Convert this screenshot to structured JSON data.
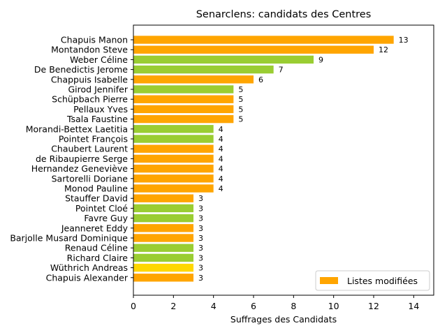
{
  "chart_data": {
    "type": "bar",
    "orientation": "horizontal",
    "title": "Senarclens: candidats des Centres",
    "xlabel": "Suffrages des Candidats",
    "ylabel": "",
    "xlim": [
      0,
      15
    ],
    "xticks": [
      0,
      2,
      4,
      6,
      8,
      10,
      12,
      14
    ],
    "grid": false,
    "legend": {
      "position": "lower-right",
      "entries": [
        {
          "label": "Listes modifiées",
          "color": "#FFA500"
        }
      ]
    },
    "colors": {
      "orange": "#FFA500",
      "green": "#9ACD32",
      "yellow": "#FFD700"
    },
    "bars": [
      {
        "name": "Chapuis Manon",
        "value": 13,
        "color": "#FFA500"
      },
      {
        "name": "Montandon Steve",
        "value": 12,
        "color": "#FFA500"
      },
      {
        "name": "Weber Céline",
        "value": 9,
        "color": "#9ACD32"
      },
      {
        "name": "De Benedictis Jerome",
        "value": 7,
        "color": "#9ACD32"
      },
      {
        "name": "Chappuis Isabelle",
        "value": 6,
        "color": "#FFA500"
      },
      {
        "name": "Girod Jennifer",
        "value": 5,
        "color": "#9ACD32"
      },
      {
        "name": "Schüpbach Pierre",
        "value": 5,
        "color": "#FFA500"
      },
      {
        "name": "Pellaux Yves",
        "value": 5,
        "color": "#FFA500"
      },
      {
        "name": "Tsala Faustine",
        "value": 5,
        "color": "#FFA500"
      },
      {
        "name": "Morandi-Bettex Laetitia",
        "value": 4,
        "color": "#9ACD32"
      },
      {
        "name": "Pointet François",
        "value": 4,
        "color": "#9ACD32"
      },
      {
        "name": "Chaubert Laurent",
        "value": 4,
        "color": "#FFA500"
      },
      {
        "name": "de Ribaupierre Serge",
        "value": 4,
        "color": "#FFA500"
      },
      {
        "name": "Hernandez Geneviève",
        "value": 4,
        "color": "#FFA500"
      },
      {
        "name": "Sartorelli Doriane",
        "value": 4,
        "color": "#FFA500"
      },
      {
        "name": "Monod Pauline",
        "value": 4,
        "color": "#FFA500"
      },
      {
        "name": "Stauffer David",
        "value": 3,
        "color": "#FFA500"
      },
      {
        "name": "Pointet Cloé",
        "value": 3,
        "color": "#9ACD32"
      },
      {
        "name": "Favre Guy",
        "value": 3,
        "color": "#9ACD32"
      },
      {
        "name": "Jeanneret Eddy",
        "value": 3,
        "color": "#FFA500"
      },
      {
        "name": "Barjolle Musard Dominique",
        "value": 3,
        "color": "#FFA500"
      },
      {
        "name": "Renaud Céline",
        "value": 3,
        "color": "#9ACD32"
      },
      {
        "name": "Richard Claire",
        "value": 3,
        "color": "#9ACD32"
      },
      {
        "name": "Wüthrich Andreas",
        "value": 3,
        "color": "#FFD700"
      },
      {
        "name": "Chapuis Alexander",
        "value": 3,
        "color": "#FFA500"
      }
    ]
  }
}
